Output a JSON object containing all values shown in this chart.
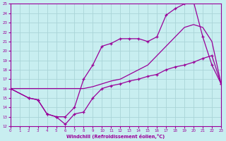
{
  "bg_color": "#c8eef0",
  "grid_color": "#aad4d8",
  "line_color": "#990099",
  "xlabel": "Windchill (Refroidissement éolien,°C)",
  "xlim": [
    0,
    23
  ],
  "ylim": [
    12,
    25
  ],
  "yticks": [
    12,
    13,
    14,
    15,
    16,
    17,
    18,
    19,
    20,
    21,
    22,
    23,
    24,
    25
  ],
  "xticks": [
    0,
    1,
    2,
    3,
    4,
    5,
    6,
    7,
    8,
    9,
    10,
    11,
    12,
    13,
    14,
    15,
    16,
    17,
    18,
    19,
    20,
    21,
    22,
    23
  ],
  "line1_x": [
    0,
    1,
    2,
    3,
    4,
    5,
    6,
    7,
    8,
    9,
    10,
    11,
    12,
    13,
    14,
    15,
    16,
    17,
    18,
    19,
    20,
    21,
    22,
    23
  ],
  "line1_y": [
    16.0,
    16.0,
    16.0,
    16.0,
    16.0,
    16.0,
    16.0,
    16.0,
    16.0,
    16.2,
    16.5,
    16.8,
    17.0,
    17.5,
    18.0,
    18.5,
    19.5,
    20.5,
    21.5,
    22.5,
    22.8,
    22.5,
    21.0,
    16.5
  ],
  "line2_x": [
    0,
    2,
    3,
    4,
    5,
    6,
    7,
    8,
    9,
    10,
    11,
    12,
    13,
    14,
    15,
    16,
    17,
    18,
    19,
    20,
    21,
    22,
    23
  ],
  "line2_y": [
    16.0,
    15.0,
    14.8,
    13.3,
    13.0,
    13.0,
    14.0,
    17.0,
    18.5,
    20.5,
    20.8,
    21.3,
    21.3,
    21.3,
    21.0,
    21.5,
    23.8,
    24.5,
    25.0,
    25.2,
    21.5,
    18.5,
    16.5
  ],
  "line3_x": [
    0,
    2,
    3,
    4,
    5,
    6,
    7,
    8,
    9,
    10,
    11,
    12,
    13,
    14,
    15,
    16,
    17,
    18,
    19,
    20,
    21,
    22,
    23
  ],
  "line3_y": [
    16.0,
    15.0,
    14.8,
    13.3,
    13.0,
    12.2,
    13.3,
    13.5,
    15.0,
    16.0,
    16.3,
    16.5,
    16.8,
    17.0,
    17.3,
    17.5,
    18.0,
    18.3,
    18.5,
    18.8,
    19.2,
    19.5,
    16.5
  ]
}
